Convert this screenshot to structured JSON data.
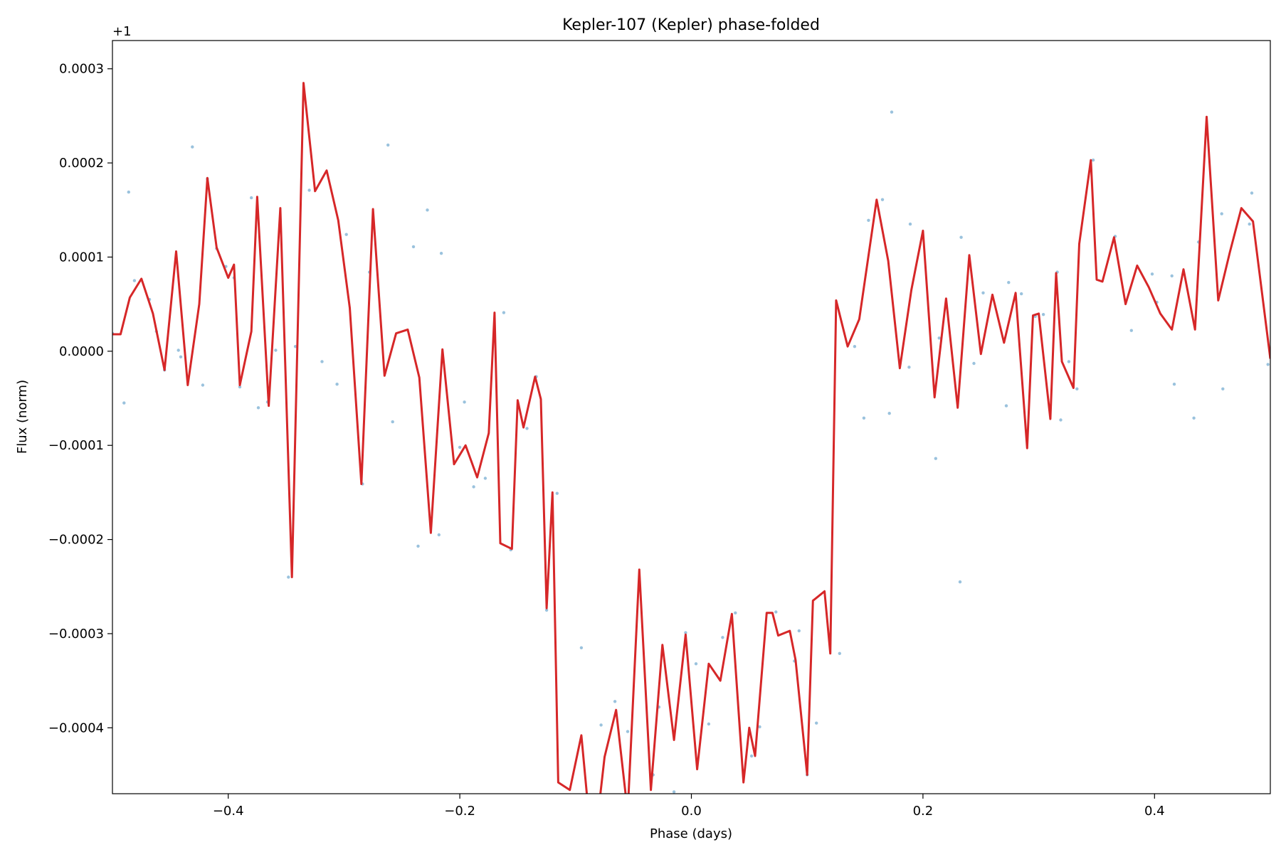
{
  "chart_data": {
    "type": "line",
    "title": "Kepler-107 (Kepler) phase-folded",
    "xlabel": "Phase (days)",
    "ylabel": "Flux (norm)",
    "y_offset_label": "+1",
    "xlim": [
      -0.5,
      0.5
    ],
    "ylim": [
      -0.00047,
      0.00033
    ],
    "xticks": [
      -0.4,
      -0.2,
      0.0,
      0.2,
      0.4
    ],
    "xtick_labels": [
      "−0.4",
      "−0.2",
      "0.0",
      "0.2",
      "0.4"
    ],
    "yticks": [
      0.0003,
      0.0002,
      0.0001,
      0.0,
      -0.0001,
      -0.0002,
      -0.0003,
      -0.0004
    ],
    "ytick_labels": [
      "0.0003",
      "0.0002",
      "0.0001",
      "0.0000",
      "−0.0001",
      "−0.0002",
      "−0.0003",
      "−0.0004"
    ],
    "grid": false,
    "series": [
      {
        "kind": "line",
        "color": "#d62728",
        "x": [
          -0.5,
          -0.493,
          -0.485,
          -0.475,
          -0.465,
          -0.455,
          -0.445,
          -0.435,
          -0.425,
          -0.418,
          -0.41,
          -0.4,
          -0.395,
          -0.39,
          -0.38,
          -0.375,
          -0.365,
          -0.355,
          -0.345,
          -0.335,
          -0.325,
          -0.315,
          -0.305,
          -0.295,
          -0.285,
          -0.275,
          -0.265,
          -0.255,
          -0.245,
          -0.235,
          -0.225,
          -0.215,
          -0.205,
          -0.195,
          -0.185,
          -0.175,
          -0.17,
          -0.165,
          -0.155,
          -0.15,
          -0.145,
          -0.135,
          -0.13,
          -0.125,
          -0.12,
          -0.115,
          -0.105,
          -0.095,
          -0.085,
          -0.075,
          -0.065,
          -0.055,
          -0.045,
          -0.035,
          -0.025,
          -0.015,
          -0.005,
          0.005,
          0.015,
          0.025,
          0.035,
          0.045,
          0.05,
          0.055,
          0.065,
          0.07,
          0.075,
          0.085,
          0.09,
          0.1,
          0.105,
          0.115,
          0.12,
          0.125,
          0.135,
          0.145,
          0.16,
          0.17,
          0.18,
          0.19,
          0.2,
          0.21,
          0.22,
          0.23,
          0.24,
          0.25,
          0.26,
          0.27,
          0.28,
          0.29,
          0.295,
          0.3,
          0.31,
          0.315,
          0.32,
          0.33,
          0.335,
          0.345,
          0.35,
          0.355,
          0.365,
          0.375,
          0.385,
          0.395,
          0.405,
          0.415,
          0.425,
          0.435,
          0.445,
          0.455,
          0.465,
          0.475,
          0.485,
          0.5
        ],
        "y": [
          1.8e-05,
          1.8e-05,
          5.7e-05,
          7.7e-05,
          4e-05,
          -2e-05,
          0.000106,
          -3.6e-05,
          5e-05,
          0.000184,
          0.00011,
          7.8e-05,
          9.2e-05,
          -3.6e-05,
          2.1e-05,
          0.000164,
          -5.8e-05,
          0.000152,
          -0.00024,
          0.000285,
          0.00017,
          0.000192,
          0.000139,
          4.6e-05,
          -0.000141,
          0.000151,
          -2.6e-05,
          1.9e-05,
          2.3e-05,
          -2.8e-05,
          -0.000193,
          2e-06,
          -0.00012,
          -0.0001,
          -0.000134,
          -8.7e-05,
          4.1e-05,
          -0.000204,
          -0.00021,
          -5.2e-05,
          -8.1e-05,
          -2.7e-05,
          -5.1e-05,
          -0.000273,
          -0.00015,
          -0.000458,
          -0.000466,
          -0.000408,
          -0.00054,
          -0.000431,
          -0.000381,
          -0.00049,
          -0.000232,
          -0.000466,
          -0.000312,
          -0.000413,
          -0.000301,
          -0.000444,
          -0.000332,
          -0.00035,
          -0.000279,
          -0.000458,
          -0.0004,
          -0.00043,
          -0.000278,
          -0.000278,
          -0.000302,
          -0.000297,
          -0.000328,
          -0.00045,
          -0.000265,
          -0.000255,
          -0.000321,
          5.4e-05,
          5e-06,
          3.4e-05,
          0.000161,
          9.6e-05,
          -1.8e-05,
          6.5e-05,
          0.000128,
          -4.9e-05,
          5.6e-05,
          -6e-05,
          0.000102,
          -3e-06,
          6e-05,
          9e-06,
          6.2e-05,
          -0.000103,
          3.8e-05,
          4e-05,
          -7.2e-05,
          8.3e-05,
          -1.1e-05,
          -3.9e-05,
          0.000114,
          0.000203,
          7.6e-05,
          7.4e-05,
          0.000121,
          5e-05,
          9.1e-05,
          6.8e-05,
          4e-05,
          2.3e-05,
          8.7e-05,
          2.3e-05,
          0.000249,
          5.4e-05,
          0.000105,
          0.000152,
          0.000138,
          -8e-06
        ]
      },
      {
        "kind": "scatter",
        "color": "#1f77b4",
        "x": [
          -0.5,
          -0.49,
          -0.486,
          -0.481,
          -0.468,
          -0.462,
          -0.455,
          -0.443,
          -0.441,
          -0.431,
          -0.422,
          -0.418,
          -0.41,
          -0.402,
          -0.395,
          -0.39,
          -0.38,
          -0.374,
          -0.366,
          -0.359,
          -0.348,
          -0.342,
          -0.33,
          -0.319,
          -0.306,
          -0.298,
          -0.284,
          -0.278,
          -0.262,
          -0.258,
          -0.24,
          -0.236,
          -0.228,
          -0.218,
          -0.216,
          -0.2,
          -0.196,
          -0.188,
          -0.178,
          -0.162,
          -0.156,
          -0.142,
          -0.134,
          -0.125,
          -0.116,
          -0.095,
          -0.078,
          -0.066,
          -0.055,
          -0.033,
          -0.028,
          -0.015,
          -0.005,
          0.004,
          0.015,
          0.027,
          0.038,
          0.052,
          0.059,
          0.073,
          0.089,
          0.093,
          0.1,
          0.108,
          0.128,
          0.141,
          0.149,
          0.153,
          0.165,
          0.171,
          0.173,
          0.188,
          0.189,
          0.211,
          0.214,
          0.232,
          0.233,
          0.244,
          0.252,
          0.272,
          0.274,
          0.285,
          0.297,
          0.304,
          0.316,
          0.319,
          0.326,
          0.333,
          0.347,
          0.366,
          0.38,
          0.398,
          0.402,
          0.415,
          0.417,
          0.434,
          0.438,
          0.458,
          0.459,
          0.482,
          0.484,
          0.498
        ],
        "y": [
          1.9e-05,
          -5.5e-05,
          0.000169,
          7.5e-05,
          5.5e-05,
          2.1e-05,
          -2e-05,
          1e-06,
          -6e-06,
          0.000217,
          -3.6e-05,
          0.000183,
          0.000109,
          9e-05,
          7.8e-05,
          -3.8e-05,
          0.000163,
          -6e-05,
          -5.4e-05,
          1e-06,
          -0.00024,
          5e-06,
          0.000171,
          -1.1e-05,
          -3.5e-05,
          0.000124,
          -0.000141,
          8.4e-05,
          0.000219,
          -7.5e-05,
          0.000111,
          -0.000207,
          0.00015,
          -0.000195,
          0.000104,
          -0.000102,
          -5.4e-05,
          -0.000144,
          -0.000135,
          4.1e-05,
          -0.000211,
          -8.2e-05,
          -2.7e-05,
          -0.000275,
          -0.000151,
          -0.000315,
          -0.000397,
          -0.000372,
          -0.000404,
          -0.00045,
          -0.000378,
          -0.000468,
          -0.000299,
          -0.000332,
          -0.000396,
          -0.000304,
          -0.000278,
          -0.00043,
          -0.000399,
          -0.000277,
          -0.000329,
          -0.000297,
          -0.00045,
          -0.000395,
          -0.000321,
          5e-06,
          -7.1e-05,
          0.000139,
          0.000161,
          -6.6e-05,
          0.000254,
          -1.7e-05,
          0.000135,
          -0.000114,
          1.4e-05,
          -0.000245,
          0.000121,
          -1.3e-05,
          6.2e-05,
          -5.8e-05,
          7.3e-05,
          6.1e-05,
          3.7e-05,
          3.9e-05,
          8.4e-05,
          -7.3e-05,
          -1.1e-05,
          -4e-05,
          0.000203,
          0.000122,
          2.2e-05,
          8.2e-05,
          5.2e-05,
          8e-05,
          -3.5e-05,
          -7.1e-05,
          0.000116,
          0.000146,
          -4e-05,
          0.000135,
          0.000168,
          -1.4e-05
        ]
      }
    ]
  }
}
